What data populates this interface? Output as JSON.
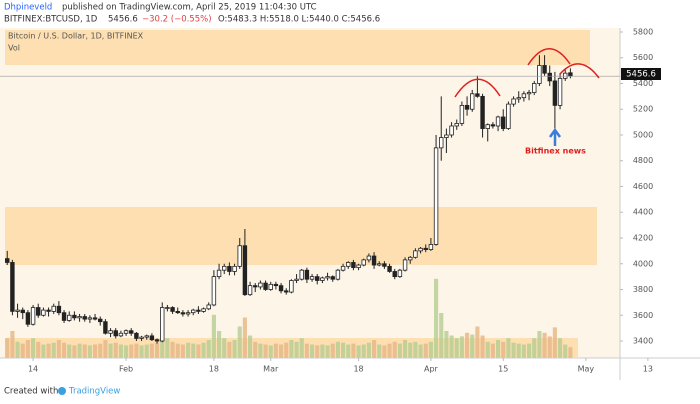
{
  "header": {
    "author": "Dhpineveld",
    "published": "published on TradingView.com, April 25, 2019 11:04:30 UTC",
    "symbol": "BITFINEX:BTCUSD, 1D",
    "price": "5456.6",
    "change": "−30.2 (−0.55%)",
    "ohlc": "O:5483.3 H:5518.0 L:5440.0 C:5456.6"
  },
  "footer": {
    "created": "Created with",
    "brand": "TradingView"
  },
  "chart_data": {
    "type": "candlestick",
    "title": "Bitcoin / U.S. Dollar, 1D, BITFINEX",
    "volume_label": "Vol",
    "annotation": "Bitfinex news",
    "last_price_label": "5456.6",
    "up_color": "#ffffff",
    "down_color": "#222222",
    "outline_color": "#222222",
    "volume_up_color": "#b9cf95",
    "volume_down_color": "#e8b98a",
    "ylim": [
      3268,
      5831
    ],
    "yticks": [
      3400,
      3600,
      3800,
      4000,
      4200,
      4400,
      4600,
      4800,
      5000,
      5200,
      5400,
      5600,
      5800
    ],
    "xlim": [
      -1.4,
      118.6
    ],
    "xticks": [
      {
        "value": 5,
        "label": "14"
      },
      {
        "value": 23,
        "label": "Feb"
      },
      {
        "value": 40,
        "label": "18"
      },
      {
        "value": 51,
        "label": "Mar"
      },
      {
        "value": 68,
        "label": "18"
      },
      {
        "value": 82,
        "label": "Apr"
      },
      {
        "value": 96,
        "label": "15"
      },
      {
        "value": 112,
        "label": "May"
      },
      {
        "value": 124,
        "label": "13"
      }
    ],
    "vlim": [
      0,
      100
    ],
    "series": [
      {
        "name": "BTCUSD",
        "values": [
          [
            4040,
            4100,
            3990,
            4010
          ],
          [
            4010,
            4030,
            3600,
            3630
          ],
          [
            3630,
            3690,
            3580,
            3640
          ],
          [
            3640,
            3660,
            3570,
            3620
          ],
          [
            3620,
            3640,
            3510,
            3530
          ],
          [
            3530,
            3680,
            3520,
            3660
          ],
          [
            3660,
            3690,
            3580,
            3600
          ],
          [
            3600,
            3660,
            3590,
            3640
          ],
          [
            3640,
            3660,
            3590,
            3630
          ],
          [
            3630,
            3690,
            3610,
            3670
          ],
          [
            3670,
            3710,
            3600,
            3620
          ],
          [
            3620,
            3640,
            3540,
            3560
          ],
          [
            3560,
            3630,
            3550,
            3600
          ],
          [
            3600,
            3630,
            3560,
            3580
          ],
          [
            3580,
            3610,
            3550,
            3590
          ],
          [
            3590,
            3610,
            3550,
            3570
          ],
          [
            3570,
            3600,
            3540,
            3580
          ],
          [
            3580,
            3610,
            3560,
            3570
          ],
          [
            3570,
            3590,
            3520,
            3550
          ],
          [
            3550,
            3570,
            3450,
            3460
          ],
          [
            3460,
            3500,
            3430,
            3480
          ],
          [
            3480,
            3500,
            3420,
            3440
          ],
          [
            3440,
            3480,
            3430,
            3460
          ],
          [
            3460,
            3490,
            3440,
            3480
          ],
          [
            3480,
            3500,
            3440,
            3460
          ],
          [
            3460,
            3470,
            3400,
            3420
          ],
          [
            3420,
            3440,
            3400,
            3430
          ],
          [
            3430,
            3450,
            3410,
            3440
          ],
          [
            3440,
            3460,
            3400,
            3410
          ],
          [
            3410,
            3420,
            3380,
            3400
          ],
          [
            3400,
            3700,
            3390,
            3660
          ],
          [
            3660,
            3680,
            3630,
            3660
          ],
          [
            3660,
            3670,
            3610,
            3630
          ],
          [
            3630,
            3660,
            3610,
            3620
          ],
          [
            3620,
            3640,
            3590,
            3610
          ],
          [
            3610,
            3640,
            3590,
            3620
          ],
          [
            3620,
            3650,
            3600,
            3640
          ],
          [
            3640,
            3670,
            3610,
            3630
          ],
          [
            3630,
            3660,
            3620,
            3650
          ],
          [
            3650,
            3700,
            3640,
            3680
          ],
          [
            3680,
            3950,
            3670,
            3900
          ],
          [
            3900,
            4000,
            3880,
            3950
          ],
          [
            3950,
            4000,
            3920,
            3980
          ],
          [
            3980,
            4010,
            3910,
            3940
          ],
          [
            3940,
            4000,
            3910,
            3980
          ],
          [
            3980,
            4200,
            3960,
            4140
          ],
          [
            4140,
            4270,
            3750,
            3760
          ],
          [
            3760,
            3860,
            3750,
            3830
          ],
          [
            3830,
            3850,
            3780,
            3820
          ],
          [
            3820,
            3870,
            3800,
            3850
          ],
          [
            3850,
            3870,
            3790,
            3800
          ],
          [
            3800,
            3860,
            3790,
            3840
          ],
          [
            3840,
            3860,
            3800,
            3830
          ],
          [
            3830,
            3850,
            3770,
            3790
          ],
          [
            3790,
            3810,
            3760,
            3780
          ],
          [
            3780,
            3880,
            3770,
            3870
          ],
          [
            3870,
            3920,
            3850,
            3880
          ],
          [
            3880,
            3960,
            3870,
            3950
          ],
          [
            3950,
            3970,
            3850,
            3880
          ],
          [
            3880,
            3920,
            3860,
            3900
          ],
          [
            3900,
            3920,
            3840,
            3870
          ],
          [
            3870,
            3900,
            3850,
            3890
          ],
          [
            3890,
            3930,
            3870,
            3900
          ],
          [
            3900,
            3910,
            3860,
            3880
          ],
          [
            3880,
            3960,
            3870,
            3950
          ],
          [
            3950,
            4000,
            3940,
            3980
          ],
          [
            3980,
            4020,
            3960,
            4010
          ],
          [
            4010,
            4030,
            3950,
            3970
          ],
          [
            3970,
            4000,
            3950,
            3990
          ],
          [
            3990,
            4040,
            3980,
            4030
          ],
          [
            4030,
            4080,
            4010,
            4060
          ],
          [
            4060,
            4090,
            3960,
            3990
          ],
          [
            3990,
            4020,
            3980,
            4000
          ],
          [
            4000,
            4020,
            3960,
            3980
          ],
          [
            3980,
            4000,
            3930,
            3940
          ],
          [
            3940,
            3960,
            3880,
            3900
          ],
          [
            3900,
            3960,
            3890,
            3950
          ],
          [
            3950,
            4050,
            3940,
            4030
          ],
          [
            4030,
            4060,
            4000,
            4050
          ],
          [
            4050,
            4120,
            4040,
            4100
          ],
          [
            4100,
            4130,
            4080,
            4120
          ],
          [
            4120,
            4150,
            4090,
            4110
          ],
          [
            4110,
            4200,
            4100,
            4150
          ],
          [
            4150,
            5000,
            4140,
            4900
          ],
          [
            4900,
            5300,
            4800,
            4980
          ],
          [
            4980,
            5050,
            4860,
            5000
          ],
          [
            5000,
            5100,
            4980,
            5070
          ],
          [
            5070,
            5120,
            5040,
            5090
          ],
          [
            5090,
            5260,
            5070,
            5230
          ],
          [
            5230,
            5300,
            5150,
            5200
          ],
          [
            5200,
            5350,
            5180,
            5320
          ],
          [
            5320,
            5460,
            5290,
            5300
          ],
          [
            5300,
            5320,
            4980,
            5050
          ],
          [
            5050,
            5090,
            4950,
            5080
          ],
          [
            5080,
            5100,
            5050,
            5070
          ],
          [
            5070,
            5150,
            5030,
            5140
          ],
          [
            5140,
            5200,
            5030,
            5050
          ],
          [
            5050,
            5260,
            5040,
            5240
          ],
          [
            5240,
            5300,
            5220,
            5280
          ],
          [
            5280,
            5340,
            5250,
            5290
          ],
          [
            5290,
            5340,
            5260,
            5320
          ],
          [
            5320,
            5350,
            5270,
            5330
          ],
          [
            5330,
            5420,
            5310,
            5400
          ],
          [
            5400,
            5620,
            5380,
            5540
          ],
          [
            5540,
            5620,
            5460,
            5480
          ],
          [
            5480,
            5540,
            5380,
            5420
          ],
          [
            5420,
            5490,
            5050,
            5230
          ],
          [
            5230,
            5480,
            5200,
            5440
          ],
          [
            5440,
            5510,
            5420,
            5480
          ],
          [
            5483.3,
            5518,
            5440,
            5456.6
          ]
        ],
        "volume": [
          22,
          30,
          18,
          16,
          20,
          22,
          18,
          15,
          16,
          17,
          20,
          17,
          15,
          14,
          16,
          15,
          14,
          15,
          16,
          20,
          16,
          17,
          15,
          14,
          15,
          16,
          14,
          15,
          16,
          17,
          40,
          22,
          18,
          16,
          15,
          17,
          16,
          15,
          17,
          20,
          48,
          30,
          22,
          18,
          20,
          35,
          45,
          25,
          18,
          16,
          15,
          14,
          16,
          15,
          17,
          20,
          18,
          22,
          16,
          15,
          14,
          15,
          14,
          16,
          18,
          17,
          15,
          16,
          14,
          15,
          17,
          20,
          15,
          14,
          16,
          18,
          16,
          20,
          17,
          18,
          15,
          16,
          18,
          88,
          50,
          30,
          25,
          22,
          24,
          28,
          26,
          35,
          25,
          18,
          16,
          20,
          18,
          22,
          17,
          16,
          15,
          16,
          22,
          30,
          28,
          24,
          34,
          22,
          15,
          12
        ]
      }
    ]
  }
}
